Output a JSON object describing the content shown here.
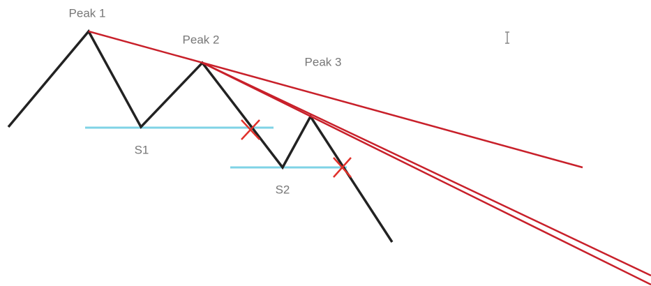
{
  "labels": {
    "peak1": "Peak 1",
    "peak2": "Peak 2",
    "peak3": "Peak 3",
    "s1": "S1",
    "s2": "S2"
  }
}
